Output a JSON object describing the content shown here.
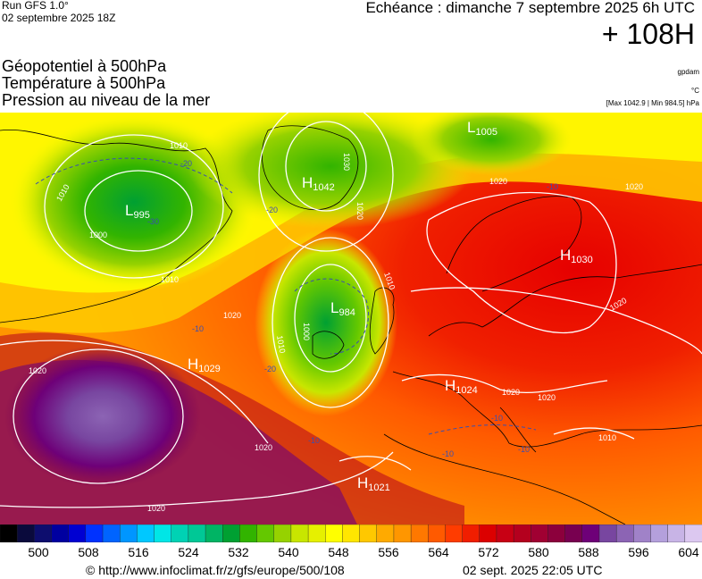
{
  "header": {
    "run": "Run GFS 1.0°",
    "run_date": "02 septembre 2025 18Z",
    "valid_time": "Echéance : dimanche 7 septembre 2025 6h UTC",
    "lead_time": "+ 108H",
    "layers": [
      "Géopotentiel à 500hPa",
      "Température à 500hPa",
      "Pression au niveau de la mer"
    ],
    "unit_geopotential": "gpdam",
    "unit_temperature": "°C",
    "pressure_range": "[Max 1042.9 | Min 984.5] hPa"
  },
  "map": {
    "pressure_centers": [
      {
        "type": "L",
        "value": "995"
      },
      {
        "type": "L",
        "value": "1005"
      },
      {
        "type": "H",
        "value": "1042"
      },
      {
        "type": "H",
        "value": "1030"
      },
      {
        "type": "L",
        "value": "984"
      },
      {
        "type": "H",
        "value": "1029"
      },
      {
        "type": "H",
        "value": "1024"
      },
      {
        "type": "H",
        "value": "1021"
      }
    ],
    "isobar_labels": [
      "1010",
      "1000",
      "1010",
      "1010",
      "1020",
      "1030",
      "1010",
      "1020",
      "1000",
      "1020",
      "1010",
      "1020",
      "1020",
      "1020",
      "1020",
      "1020",
      "1010",
      "1020",
      "1020"
    ],
    "isotherm_labels": [
      "-20",
      "-30",
      "-20",
      "-20",
      "-10",
      "-10",
      "-10",
      "-10",
      "-10",
      "-10"
    ],
    "colors": {
      "isobar": "#ffffff",
      "isotherm": "#3b4fb0",
      "coast": "#000000"
    }
  },
  "legend": {
    "ticks": [
      "500",
      "508",
      "516",
      "524",
      "532",
      "540",
      "548",
      "556",
      "564",
      "572",
      "580",
      "588",
      "596",
      "604"
    ],
    "colors": [
      "#000000",
      "#0a0a3c",
      "#0d0d6e",
      "#0000a0",
      "#0000d2",
      "#0032ff",
      "#0064ff",
      "#0096ff",
      "#00c8ff",
      "#00e6e6",
      "#00d2b4",
      "#00c896",
      "#00b464",
      "#00a032",
      "#32b400",
      "#64c800",
      "#96d200",
      "#c8e600",
      "#e6f000",
      "#ffff00",
      "#ffe600",
      "#ffc800",
      "#ffaa00",
      "#ff9600",
      "#ff7800",
      "#ff5a00",
      "#ff3c00",
      "#f01e00",
      "#dc0000",
      "#c80014",
      "#b4001e",
      "#a00032",
      "#8c003c",
      "#780050",
      "#6e0078",
      "#7846a0",
      "#8c64b4",
      "#a082c8",
      "#b4a0dc",
      "#c8b4e6",
      "#dcc8f0"
    ]
  },
  "footer": {
    "url": "© http://www.infoclimat.fr/z/gfs/europe/500/108",
    "generated": "02 sept. 2025 22:05 UTC"
  }
}
